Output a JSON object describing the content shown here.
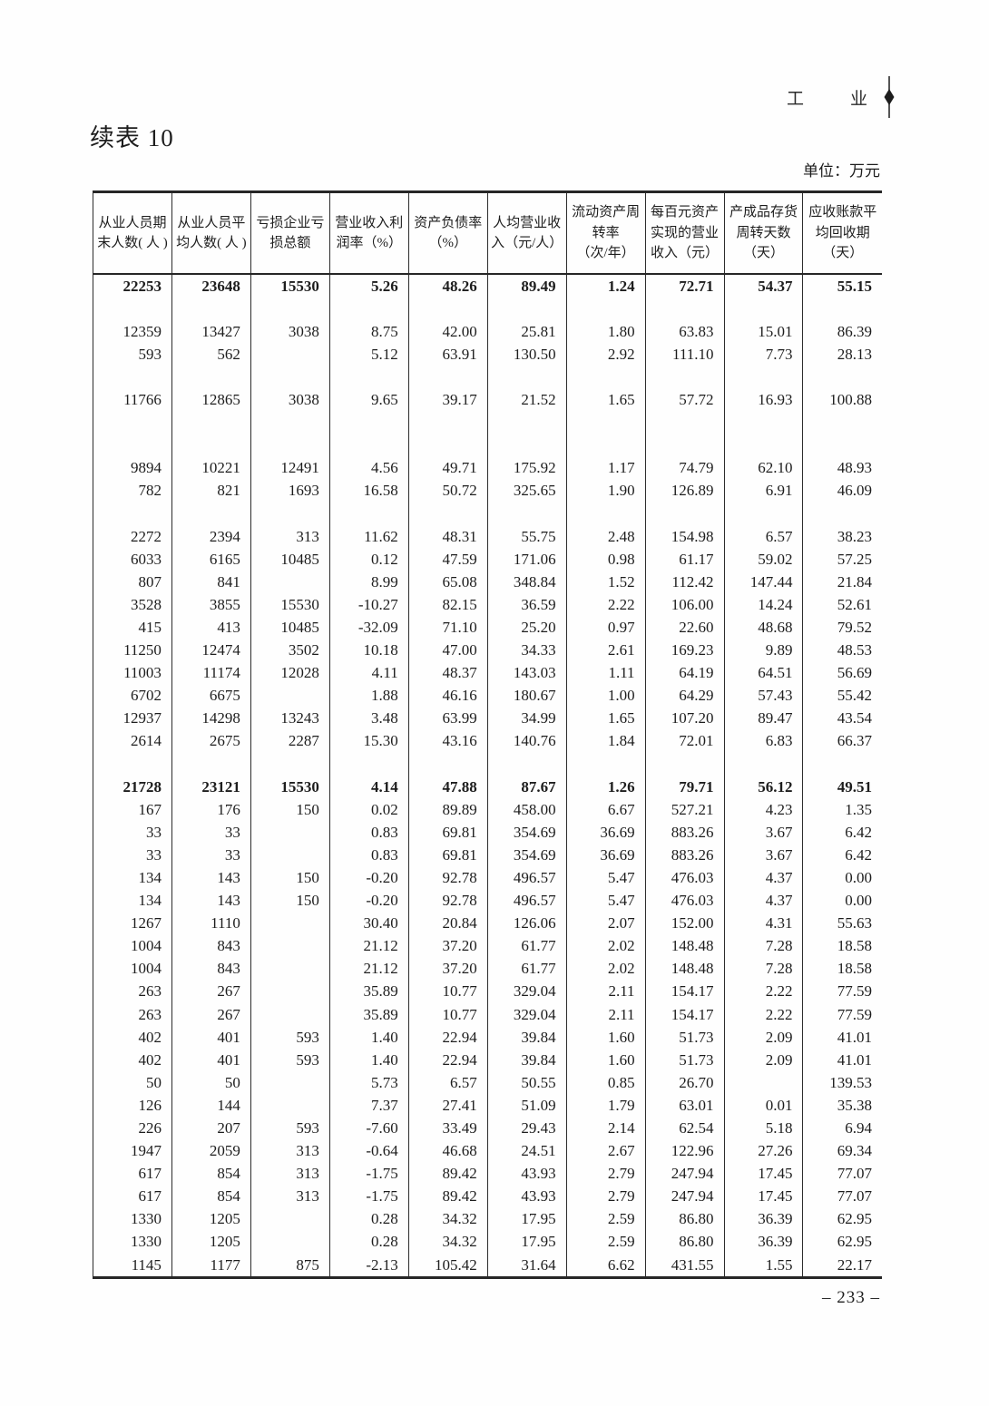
{
  "header": {
    "section_title": "工　业",
    "table_title": "续表 10"
  },
  "table": {
    "unit_note": "单位：万元",
    "columns": [
      "从业人员期\n末人数( 人 )",
      "从业人员平\n均人数( 人 )",
      "亏损企业亏\n损总额",
      "营业收入利\n润率（%）",
      "资产负债率\n（%）",
      "人均营业收\n入（元/人）",
      "流动资产周\n转率\n（次/年）",
      "每百元资产\n实现的营业\n收入（元）",
      "产成品存货\n周转天数\n（天）",
      "应收账款平\n均回收期\n（天）"
    ],
    "rows": [
      {
        "style": "total",
        "cells": [
          "22253",
          "23648",
          "15530",
          "5.26",
          "48.26",
          "89.49",
          "1.24",
          "72.71",
          "54.37",
          "55.15"
        ]
      },
      {
        "style": "blank",
        "cells": []
      },
      {
        "style": "data",
        "cells": [
          "12359",
          "13427",
          "3038",
          "8.75",
          "42.00",
          "25.81",
          "1.80",
          "63.83",
          "15.01",
          "86.39"
        ]
      },
      {
        "style": "data",
        "cells": [
          "593",
          "562",
          "",
          "5.12",
          "63.91",
          "130.50",
          "2.92",
          "111.10",
          "7.73",
          "28.13"
        ]
      },
      {
        "style": "blank",
        "cells": []
      },
      {
        "style": "data",
        "cells": [
          "11766",
          "12865",
          "3038",
          "9.65",
          "39.17",
          "21.52",
          "1.65",
          "57.72",
          "16.93",
          "100.88"
        ]
      },
      {
        "style": "blank",
        "cells": []
      },
      {
        "style": "blank",
        "cells": []
      },
      {
        "style": "data",
        "cells": [
          "9894",
          "10221",
          "12491",
          "4.56",
          "49.71",
          "175.92",
          "1.17",
          "74.79",
          "62.10",
          "48.93"
        ]
      },
      {
        "style": "data",
        "cells": [
          "782",
          "821",
          "1693",
          "16.58",
          "50.72",
          "325.65",
          "1.90",
          "126.89",
          "6.91",
          "46.09"
        ]
      },
      {
        "style": "blank",
        "cells": []
      },
      {
        "style": "data",
        "cells": [
          "2272",
          "2394",
          "313",
          "11.62",
          "48.31",
          "55.75",
          "2.48",
          "154.98",
          "6.57",
          "38.23"
        ]
      },
      {
        "style": "data",
        "cells": [
          "6033",
          "6165",
          "10485",
          "0.12",
          "47.59",
          "171.06",
          "0.98",
          "61.17",
          "59.02",
          "57.25"
        ]
      },
      {
        "style": "data",
        "cells": [
          "807",
          "841",
          "",
          "8.99",
          "65.08",
          "348.84",
          "1.52",
          "112.42",
          "147.44",
          "21.84"
        ]
      },
      {
        "style": "data",
        "cells": [
          "3528",
          "3855",
          "15530",
          "-10.27",
          "82.15",
          "36.59",
          "2.22",
          "106.00",
          "14.24",
          "52.61"
        ]
      },
      {
        "style": "data",
        "cells": [
          "415",
          "413",
          "10485",
          "-32.09",
          "71.10",
          "25.20",
          "0.97",
          "22.60",
          "48.68",
          "79.52"
        ]
      },
      {
        "style": "data",
        "cells": [
          "11250",
          "12474",
          "3502",
          "10.18",
          "47.00",
          "34.33",
          "2.61",
          "169.23",
          "9.89",
          "48.53"
        ]
      },
      {
        "style": "data",
        "cells": [
          "11003",
          "11174",
          "12028",
          "4.11",
          "48.37",
          "143.03",
          "1.11",
          "64.19",
          "64.51",
          "56.69"
        ]
      },
      {
        "style": "data",
        "cells": [
          "6702",
          "6675",
          "",
          "1.88",
          "46.16",
          "180.67",
          "1.00",
          "64.29",
          "57.43",
          "55.42"
        ]
      },
      {
        "style": "data",
        "cells": [
          "12937",
          "14298",
          "13243",
          "3.48",
          "63.99",
          "34.99",
          "1.65",
          "107.20",
          "89.47",
          "43.54"
        ]
      },
      {
        "style": "data",
        "cells": [
          "2614",
          "2675",
          "2287",
          "15.30",
          "43.16",
          "140.76",
          "1.84",
          "72.01",
          "6.83",
          "66.37"
        ]
      },
      {
        "style": "blank",
        "cells": []
      },
      {
        "style": "total",
        "cells": [
          "21728",
          "23121",
          "15530",
          "4.14",
          "47.88",
          "87.67",
          "1.26",
          "79.71",
          "56.12",
          "49.51"
        ]
      },
      {
        "style": "data",
        "cells": [
          "167",
          "176",
          "150",
          "0.02",
          "89.89",
          "458.00",
          "6.67",
          "527.21",
          "4.23",
          "1.35"
        ]
      },
      {
        "style": "data",
        "cells": [
          "33",
          "33",
          "",
          "0.83",
          "69.81",
          "354.69",
          "36.69",
          "883.26",
          "3.67",
          "6.42"
        ]
      },
      {
        "style": "data",
        "cells": [
          "33",
          "33",
          "",
          "0.83",
          "69.81",
          "354.69",
          "36.69",
          "883.26",
          "3.67",
          "6.42"
        ]
      },
      {
        "style": "data",
        "cells": [
          "134",
          "143",
          "150",
          "-0.20",
          "92.78",
          "496.57",
          "5.47",
          "476.03",
          "4.37",
          "0.00"
        ]
      },
      {
        "style": "data",
        "cells": [
          "134",
          "143",
          "150",
          "-0.20",
          "92.78",
          "496.57",
          "5.47",
          "476.03",
          "4.37",
          "0.00"
        ]
      },
      {
        "style": "data",
        "cells": [
          "1267",
          "1110",
          "",
          "30.40",
          "20.84",
          "126.06",
          "2.07",
          "152.00",
          "4.31",
          "55.63"
        ]
      },
      {
        "style": "data",
        "cells": [
          "1004",
          "843",
          "",
          "21.12",
          "37.20",
          "61.77",
          "2.02",
          "148.48",
          "7.28",
          "18.58"
        ]
      },
      {
        "style": "data",
        "cells": [
          "1004",
          "843",
          "",
          "21.12",
          "37.20",
          "61.77",
          "2.02",
          "148.48",
          "7.28",
          "18.58"
        ]
      },
      {
        "style": "data",
        "cells": [
          "263",
          "267",
          "",
          "35.89",
          "10.77",
          "329.04",
          "2.11",
          "154.17",
          "2.22",
          "77.59"
        ]
      },
      {
        "style": "data",
        "cells": [
          "263",
          "267",
          "",
          "35.89",
          "10.77",
          "329.04",
          "2.11",
          "154.17",
          "2.22",
          "77.59"
        ]
      },
      {
        "style": "data",
        "cells": [
          "402",
          "401",
          "593",
          "1.40",
          "22.94",
          "39.84",
          "1.60",
          "51.73",
          "2.09",
          "41.01"
        ]
      },
      {
        "style": "data",
        "cells": [
          "402",
          "401",
          "593",
          "1.40",
          "22.94",
          "39.84",
          "1.60",
          "51.73",
          "2.09",
          "41.01"
        ]
      },
      {
        "style": "data",
        "cells": [
          "50",
          "50",
          "",
          "5.73",
          "6.57",
          "50.55",
          "0.85",
          "26.70",
          "",
          "139.53"
        ]
      },
      {
        "style": "data",
        "cells": [
          "126",
          "144",
          "",
          "7.37",
          "27.41",
          "51.09",
          "1.79",
          "63.01",
          "0.01",
          "35.38"
        ]
      },
      {
        "style": "data",
        "cells": [
          "226",
          "207",
          "593",
          "-7.60",
          "33.49",
          "29.43",
          "2.14",
          "62.54",
          "5.18",
          "6.94"
        ]
      },
      {
        "style": "data",
        "cells": [
          "1947",
          "2059",
          "313",
          "-0.64",
          "46.68",
          "24.51",
          "2.67",
          "122.96",
          "27.26",
          "69.34"
        ]
      },
      {
        "style": "data",
        "cells": [
          "617",
          "854",
          "313",
          "-1.75",
          "89.42",
          "43.93",
          "2.79",
          "247.94",
          "17.45",
          "77.07"
        ]
      },
      {
        "style": "data",
        "cells": [
          "617",
          "854",
          "313",
          "-1.75",
          "89.42",
          "43.93",
          "2.79",
          "247.94",
          "17.45",
          "77.07"
        ]
      },
      {
        "style": "data",
        "cells": [
          "1330",
          "1205",
          "",
          "0.28",
          "34.32",
          "17.95",
          "2.59",
          "86.80",
          "36.39",
          "62.95"
        ]
      },
      {
        "style": "data",
        "cells": [
          "1330",
          "1205",
          "",
          "0.28",
          "34.32",
          "17.95",
          "2.59",
          "86.80",
          "36.39",
          "62.95"
        ]
      },
      {
        "style": "data",
        "cells": [
          "1145",
          "1177",
          "875",
          "-2.13",
          "105.42",
          "31.64",
          "6.62",
          "431.55",
          "1.55",
          "22.17"
        ]
      }
    ]
  },
  "footer": {
    "page_number": "– 233 –"
  }
}
